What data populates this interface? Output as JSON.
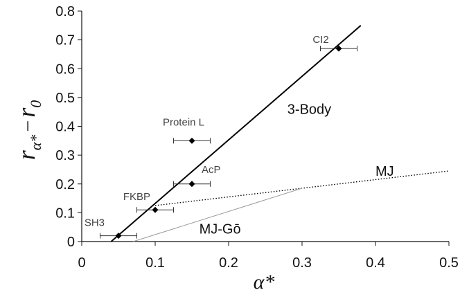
{
  "chart_data": {
    "type": "scatter",
    "title": "",
    "xlabel": "α*",
    "ylabel": "r α* − r 0",
    "ylabel_parts": {
      "main": "r",
      "sub": "α*",
      "minus": "−",
      "main2": "r",
      "sub2": "0"
    },
    "xlim": [
      0,
      0.5
    ],
    "ylim": [
      0,
      0.8
    ],
    "xticks": [
      0,
      0.1,
      0.2,
      0.3,
      0.4,
      0.5
    ],
    "yticks": [
      0,
      0.1,
      0.2,
      0.3,
      0.4,
      0.5,
      0.6,
      0.7,
      0.8
    ],
    "xtick_labels": [
      "0",
      "0.1",
      "0.2",
      "0.3",
      "0.4",
      "0.5"
    ],
    "ytick_labels": [
      "0",
      "0.1",
      "0.2",
      "0.3",
      "0.4",
      "0.5",
      "0.6",
      "0.7",
      "0.8"
    ],
    "grid": false,
    "points": [
      {
        "label": "SH3",
        "x": 0.05,
        "y": 0.02,
        "xerr": 0.025
      },
      {
        "label": "FKBP",
        "x": 0.1,
        "y": 0.11,
        "xerr": 0.025
      },
      {
        "label": "AcP",
        "x": 0.15,
        "y": 0.2,
        "xerr": 0.025
      },
      {
        "label": "Protein L",
        "x": 0.15,
        "y": 0.35,
        "xerr": 0.025
      },
      {
        "label": "CI2",
        "x": 0.35,
        "y": 0.67,
        "xerr": 0.025
      }
    ],
    "lines": [
      {
        "name": "3-Body",
        "style": "solid",
        "x": [
          0.04,
          0.38
        ],
        "y": [
          0.0,
          0.75
        ]
      },
      {
        "name": "MJ",
        "style": "dotted",
        "x": [
          0.1,
          0.5
        ],
        "y": [
          0.125,
          0.245
        ]
      },
      {
        "name": "MJ-Gō",
        "style": "thin",
        "x": [
          0.07,
          0.3
        ],
        "y": [
          0.0,
          0.185
        ]
      }
    ]
  }
}
